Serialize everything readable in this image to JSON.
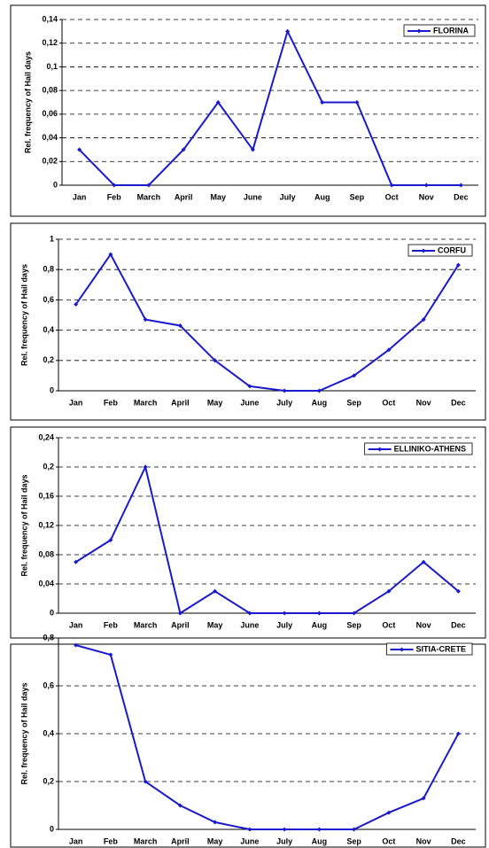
{
  "chart_data": [
    {
      "type": "line",
      "y_label": "Rel. frequency of Hail days",
      "categories": [
        "Jan",
        "Feb",
        "March",
        "April",
        "May",
        "June",
        "July",
        "Aug",
        "Sep",
        "Oct",
        "Nov",
        "Dec"
      ],
      "series": [
        {
          "name": "FLORINA",
          "color": "#1a1acc",
          "values": [
            0.03,
            0,
            0,
            0.03,
            0.07,
            0.03,
            0.13,
            0.07,
            0.07,
            0,
            0,
            0
          ]
        }
      ],
      "ylim": [
        0,
        0.14
      ],
      "yticks": [
        0,
        {
          "value": 0.02,
          "label": "0,02"
        },
        {
          "value": 0.04,
          "label": "0,04"
        },
        {
          "value": 0.06,
          "label": "0,06"
        },
        {
          "value": 0.08,
          "label": "0,08"
        },
        {
          "value": 0.1,
          "label": "0,1"
        },
        {
          "value": 0.12,
          "label": "0,12"
        },
        {
          "value": 0.14,
          "label": "0,14"
        }
      ],
      "grid": true,
      "legend": "upper right"
    },
    {
      "type": "line",
      "y_label": "Rel. frequency of Hail days",
      "categories": [
        "Jan",
        "Feb",
        "March",
        "April",
        "May",
        "June",
        "July",
        "Aug",
        "Sep",
        "Oct",
        "Nov",
        "Dec"
      ],
      "series": [
        {
          "name": "CORFU",
          "color": "#1a1acc",
          "values": [
            0.57,
            0.9,
            0.47,
            0.43,
            0.2,
            0.03,
            0,
            0,
            0.1,
            0.27,
            0.47,
            0.83
          ]
        }
      ],
      "ylim": [
        0,
        1
      ],
      "yticks": [
        0,
        {
          "value": 0.2,
          "label": "0,2"
        },
        {
          "value": 0.4,
          "label": "0,4"
        },
        {
          "value": 0.6,
          "label": "0,6"
        },
        {
          "value": 0.8,
          "label": "0,8"
        },
        1
      ],
      "grid": true,
      "legend": "upper right"
    },
    {
      "type": "line",
      "y_label": "Rel. frequency of Hail days",
      "categories": [
        "Jan",
        "Feb",
        "March",
        "April",
        "May",
        "June",
        "July",
        "Aug",
        "Sep",
        "Oct",
        "Nov",
        "Dec"
      ],
      "series": [
        {
          "name": "ELLINIKO-ATHENS",
          "color": "#1a1acc",
          "values": [
            0.07,
            0.1,
            0.2,
            0,
            0.03,
            0,
            0,
            0,
            0,
            0.03,
            0.07,
            0.03
          ]
        }
      ],
      "ylim": [
        0,
        0.24
      ],
      "yticks": [
        0,
        {
          "value": 0.04,
          "label": "0,04"
        },
        {
          "value": 0.08,
          "label": "0,08"
        },
        {
          "value": 0.12,
          "label": "0,12"
        },
        {
          "value": 0.16,
          "label": "0,16"
        },
        {
          "value": 0.2,
          "label": "0,2"
        },
        {
          "value": 0.24,
          "label": "0,24"
        }
      ],
      "grid": true,
      "legend": "upper right"
    },
    {
      "type": "line",
      "y_label": "Rel. frequency of Hail days",
      "categories": [
        "Jan",
        "Feb",
        "March",
        "April",
        "May",
        "June",
        "July",
        "Aug",
        "Sep",
        "Oct",
        "Nov",
        "Dec"
      ],
      "series": [
        {
          "name": "SITIA-CRETE",
          "color": "#1a1acc",
          "values": [
            0.77,
            0.73,
            0.2,
            0.1,
            0.03,
            0,
            0,
            0,
            0,
            0.07,
            0.13,
            0.4
          ]
        }
      ],
      "ylim": [
        0,
        0.8
      ],
      "yticks": [
        0,
        {
          "value": 0.2,
          "label": "0,2"
        },
        {
          "value": 0.4,
          "label": "0,4"
        },
        {
          "value": 0.6,
          "label": "0,6"
        },
        {
          "value": 0.8,
          "label": "0,8"
        }
      ],
      "grid": true,
      "legend": "upper right"
    }
  ]
}
